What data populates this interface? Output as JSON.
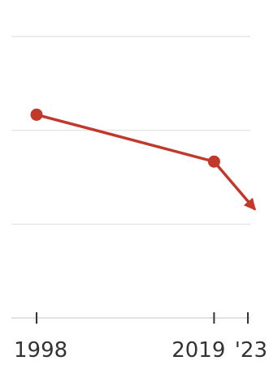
{
  "chart_data": {
    "type": "line",
    "title": "",
    "xlabel": "",
    "ylabel": "",
    "x": [
      1998,
      2019,
      2023
    ],
    "x_tick_labels": [
      "1998",
      "2019",
      "'23"
    ],
    "series": [
      {
        "values": [
          65,
          50,
          37
        ],
        "color": "#c0392b",
        "end_marker": "arrow"
      }
    ],
    "xlim": [
      1998,
      2023
    ],
    "ylim": [
      0,
      90
    ],
    "y_gridlines": [
      30,
      60,
      90
    ],
    "grid": "horizontal",
    "legend": "none"
  }
}
